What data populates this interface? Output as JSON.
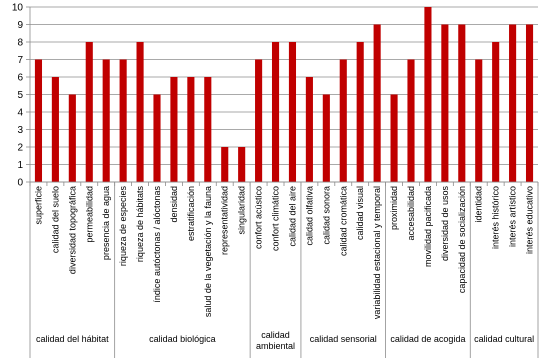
{
  "chart_data": {
    "type": "bar",
    "title": "",
    "xlabel": "",
    "ylabel": "",
    "ylim": [
      0,
      10
    ],
    "yticks": [
      0,
      1,
      2,
      3,
      4,
      5,
      6,
      7,
      8,
      9,
      10
    ],
    "grid": true,
    "legend": "none",
    "bar_color": "#C00000",
    "groups": [
      {
        "label": "calidad del hábitat",
        "categories": [
          "superficie",
          "calidad del suelo",
          "diversidad topográfica",
          "permeabilidad",
          "presencia de agua"
        ],
        "values": [
          7,
          6,
          5,
          8,
          7
        ]
      },
      {
        "label": "calidad biológica",
        "categories": [
          "riqueza de especies",
          "riqueza de hábitats",
          "índice autóctonas / alóctonas",
          "densidad",
          "estratificación",
          "salud de la vegetación y la fauna",
          "representatividad",
          "singularidad"
        ],
        "values": [
          7,
          8,
          5,
          6,
          6,
          6,
          2,
          2
        ]
      },
      {
        "label": "calidad ambiental",
        "label_lines": [
          "calidad",
          "ambiental"
        ],
        "categories": [
          "confort acústico",
          "confort climático",
          "calidad del aire"
        ],
        "values": [
          7,
          8,
          8
        ]
      },
      {
        "label": "calidad sensorial",
        "categories": [
          "calidad olfativa",
          "calidad sonora",
          "calidad cromática",
          "calidad visual",
          "variabilidad estacional y temporal"
        ],
        "values": [
          6,
          5,
          7,
          8,
          9
        ]
      },
      {
        "label": "calidad de acogida",
        "categories": [
          "proximidad",
          "accesabilidad",
          "movilidad pacificada",
          "diversidad de usos",
          "capacidad de socialización"
        ],
        "values": [
          5,
          7,
          10,
          9,
          9
        ]
      },
      {
        "label": "calidad cultural",
        "categories": [
          "identidad",
          "interés histórico",
          "interés artístico",
          "interés educativo"
        ],
        "values": [
          7,
          8,
          9,
          9
        ]
      }
    ]
  }
}
